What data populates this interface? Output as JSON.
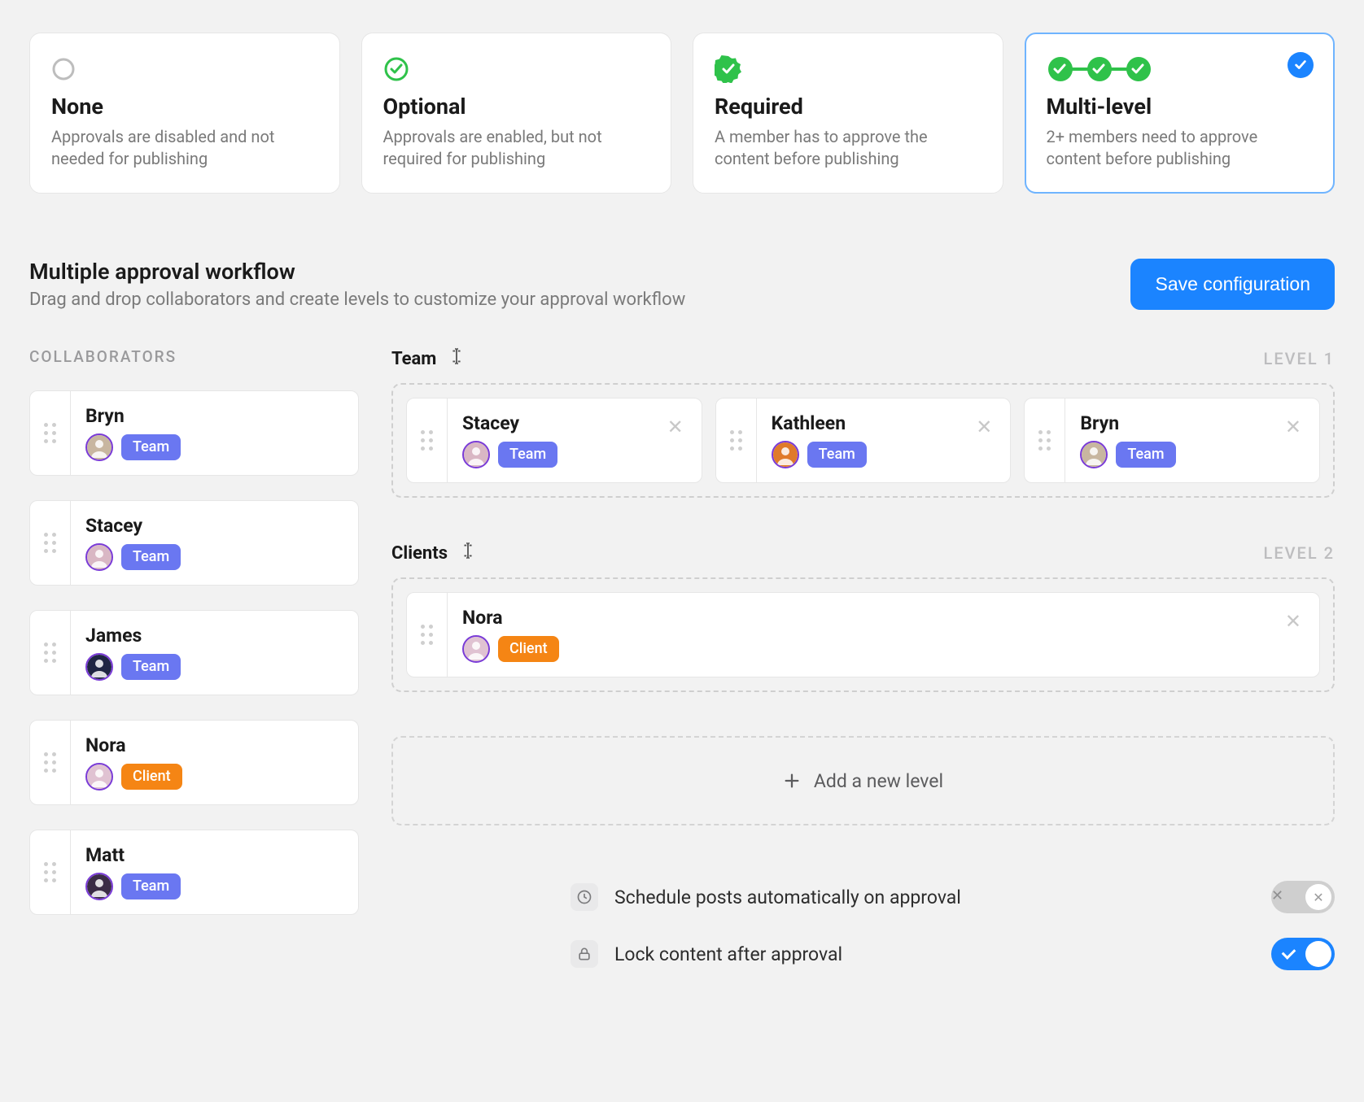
{
  "options": [
    {
      "key": "none",
      "title": "None",
      "desc": "Approvals are disabled and not needed for publishing",
      "icon": "circle",
      "selected": false
    },
    {
      "key": "optional",
      "title": "Optional",
      "desc": "Approvals are enabled, but not required for publishing",
      "icon": "check-ring",
      "selected": false
    },
    {
      "key": "required",
      "title": "Required",
      "desc": "A member has to approve the content before publishing",
      "icon": "check-seal",
      "selected": false
    },
    {
      "key": "multi",
      "title": "Multi-level",
      "desc": "2+ members need to approve content before publishing",
      "icon": "check-chain",
      "selected": true
    }
  ],
  "section": {
    "title": "Multiple approval workflow",
    "subtitle": "Drag and drop collaborators and create levels to customize your approval workflow",
    "save_label": "Save configuration"
  },
  "collaborators_label": "COLLABORATORS",
  "collaborators": [
    {
      "name": "Bryn",
      "role": "Team",
      "role_kind": "team",
      "avatar_bg": "#c8b6a0"
    },
    {
      "name": "Stacey",
      "role": "Team",
      "role_kind": "team",
      "avatar_bg": "#d9b7c4"
    },
    {
      "name": "James",
      "role": "Team",
      "role_kind": "team",
      "avatar_bg": "#1f2543"
    },
    {
      "name": "Nora",
      "role": "Client",
      "role_kind": "client",
      "avatar_bg": "#e0c2d2"
    },
    {
      "name": "Matt",
      "role": "Team",
      "role_kind": "team",
      "avatar_bg": "#3b2c46"
    }
  ],
  "levels": [
    {
      "name": "Team",
      "tag": "LEVEL 1",
      "members": [
        {
          "name": "Stacey",
          "role": "Team",
          "role_kind": "team",
          "avatar_bg": "#d9b7c4"
        },
        {
          "name": "Kathleen",
          "role": "Team",
          "role_kind": "team",
          "avatar_bg": "#e07a2a"
        },
        {
          "name": "Bryn",
          "role": "Team",
          "role_kind": "team",
          "avatar_bg": "#c8b6a0"
        }
      ]
    },
    {
      "name": "Clients",
      "tag": "LEVEL 2",
      "members": [
        {
          "name": "Nora",
          "role": "Client",
          "role_kind": "client",
          "avatar_bg": "#e0c2d2"
        }
      ]
    }
  ],
  "add_level_label": "Add a new level",
  "toggles": [
    {
      "key": "auto_schedule",
      "icon": "clock",
      "label": "Schedule posts automatically on approval",
      "on": false
    },
    {
      "key": "lock_content",
      "icon": "lock",
      "label": "Lock content after approval",
      "on": true
    }
  ],
  "style": {
    "bg": "#f2f2f2",
    "card_bg": "#ffffff",
    "border": "#e6e6e6",
    "text_muted": "#7a7a7a",
    "accent_blue": "#1b84ff",
    "selected_border": "#6fb4ff",
    "green": "#2fc24a",
    "team_pill": "#6a77f1",
    "client_pill": "#f58514",
    "dashed_border": "#cfcfcf",
    "level_tag_color": "#bdbdbf",
    "toggle_off_bg": "#cfcfcf",
    "avatar_ring": "#7a3bd7",
    "corner_radius_card": 14,
    "corner_radius_small": 10,
    "option_title_fontsize": 27,
    "option_desc_fontsize": 20,
    "body_fontsize": 23
  }
}
